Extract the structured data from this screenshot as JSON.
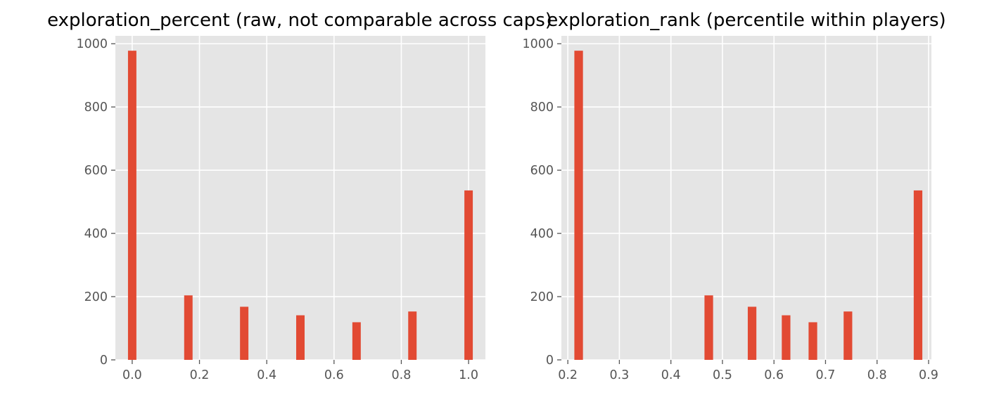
{
  "chart_data": [
    {
      "type": "bar",
      "title": "exploration_percent (raw, not comparable across caps)",
      "xlabel": "",
      "ylabel": "",
      "xlim": [
        -0.05,
        1.05
      ],
      "ylim": [
        0,
        1025
      ],
      "xticks": [
        0.0,
        0.2,
        0.4,
        0.6,
        0.8,
        1.0
      ],
      "xtick_labels": [
        "0.0",
        "0.2",
        "0.4",
        "0.6",
        "0.8",
        "1.0"
      ],
      "yticks": [
        0,
        200,
        400,
        600,
        800,
        1000
      ],
      "ytick_labels": [
        "0",
        "200",
        "400",
        "600",
        "800",
        "1000"
      ],
      "grid": true,
      "bar_color": "#E24A33",
      "bin_width": 0.025,
      "x": [
        0.0,
        0.167,
        0.333,
        0.5,
        0.667,
        0.833,
        1.0
      ],
      "values": [
        978,
        204,
        168,
        141,
        119,
        153,
        536
      ]
    },
    {
      "type": "bar",
      "title": "exploration_rank (percentile within players)",
      "xlabel": "",
      "ylabel": "",
      "xlim": [
        0.1875,
        0.9055
      ],
      "ylim": [
        0,
        1025
      ],
      "xticks": [
        0.2,
        0.3,
        0.4,
        0.5,
        0.6,
        0.7,
        0.8,
        0.9
      ],
      "xtick_labels": [
        "0.2",
        "0.3",
        "0.4",
        "0.5",
        "0.6",
        "0.7",
        "0.8",
        "0.9"
      ],
      "yticks": [
        0,
        200,
        400,
        600,
        800,
        1000
      ],
      "ytick_labels": [
        "0",
        "200",
        "400",
        "600",
        "800",
        "1000"
      ],
      "grid": true,
      "bar_color": "#E24A33",
      "bin_width": 0.0167,
      "x": [
        0.221,
        0.4735,
        0.5575,
        0.6235,
        0.6755,
        0.7435,
        0.8795
      ],
      "values": [
        978,
        204,
        168,
        141,
        119,
        153,
        536
      ]
    }
  ]
}
